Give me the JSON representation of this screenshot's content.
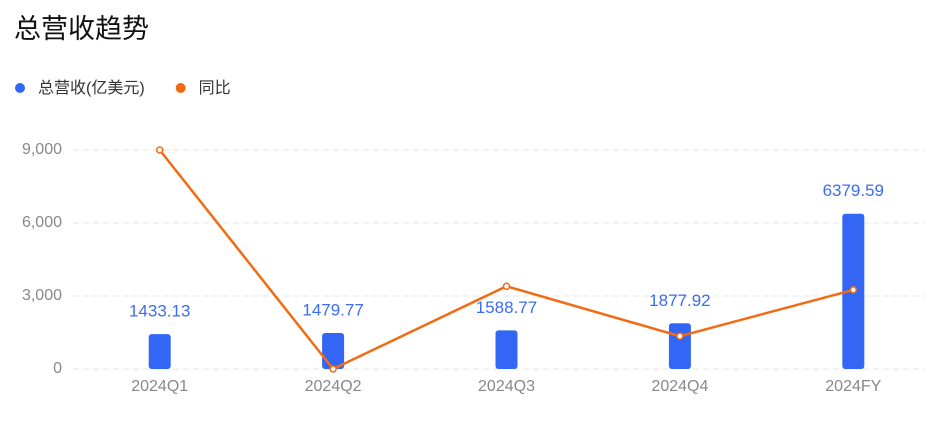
{
  "chart_data": {
    "type": "bar",
    "title": "总营收趋势",
    "categories": [
      "2024Q1",
      "2024Q2",
      "2024Q3",
      "2024Q4",
      "2024FY"
    ],
    "series": [
      {
        "name": "总营收(亿美元)",
        "type": "bar",
        "color": "#3366f5",
        "values": [
          1433.13,
          1479.77,
          1588.77,
          1877.92,
          6379.59
        ]
      },
      {
        "name": "同比",
        "type": "line",
        "color": "#f26b12",
        "values": [
          9000,
          0,
          3400,
          1350,
          3250
        ]
      }
    ],
    "ylim": [
      0,
      9000
    ],
    "yticks": [
      0,
      {
        "value": 3000,
        "label": "3,000"
      },
      {
        "value": 6000,
        "label": "6,000"
      },
      {
        "value": 9000,
        "label": "9,000"
      }
    ],
    "grid": true
  }
}
